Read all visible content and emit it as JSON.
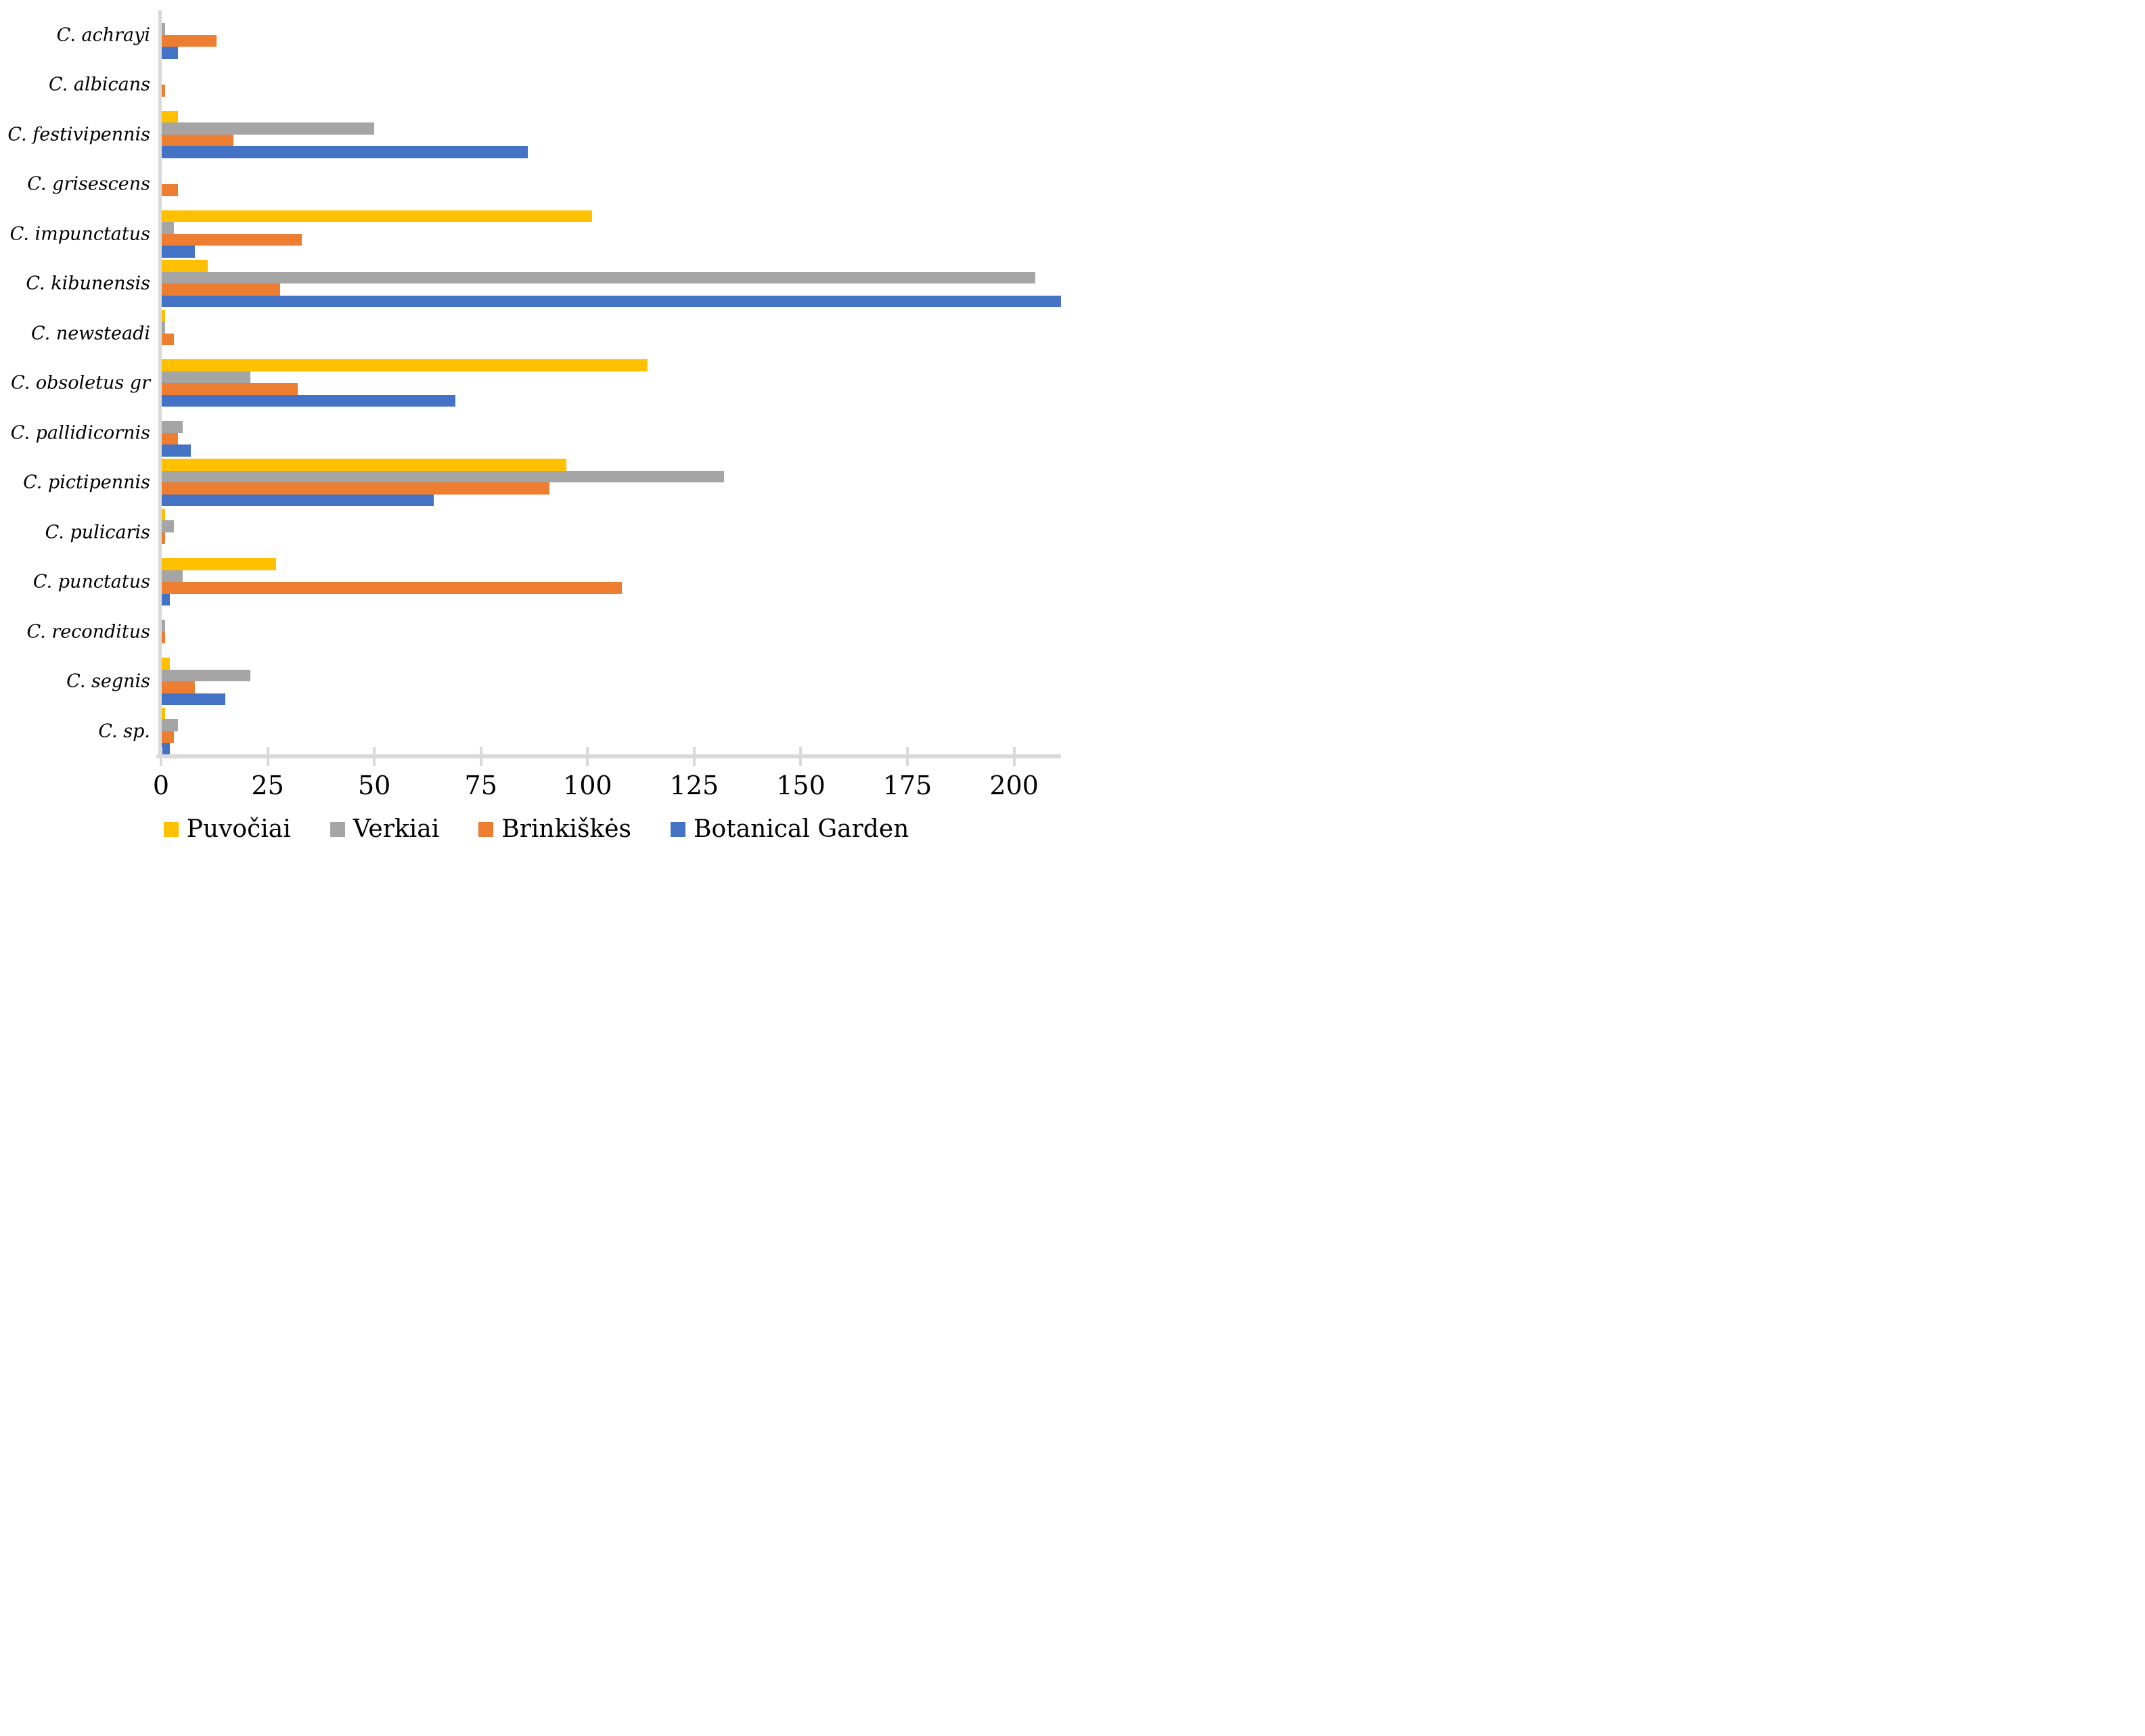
{
  "chart_data": {
    "type": "bar",
    "orientation": "horizontal",
    "title": "",
    "xlabel": "",
    "ylabel": "",
    "grid": false,
    "legend_position": "bottom",
    "axis_color": "#D9D9D9",
    "xlim": [
      0,
      211
    ],
    "x_ticks": [
      0,
      25,
      50,
      75,
      100,
      125,
      150,
      175,
      200
    ],
    "categories": [
      "C. achrayi",
      "C. albicans",
      "C. festivipennis",
      "C. grisescens",
      "C. impunctatus",
      "C. kibunensis",
      "C. newsteadi",
      "C. obsoletus gr",
      "C. pallidicornis",
      "C. pictipennis",
      "C. pulicaris",
      "C. punctatus",
      "C. reconditus",
      "C. segnis",
      "C. sp."
    ],
    "series": [
      {
        "name": "Puvočiai",
        "color": "#FFC000",
        "values": [
          0,
          0,
          4,
          0,
          101,
          11,
          1,
          114,
          0,
          95,
          1,
          27,
          0,
          2,
          1
        ]
      },
      {
        "name": "Verkiai",
        "color": "#A5A5A5",
        "values": [
          1,
          0,
          50,
          0,
          3,
          205,
          1,
          21,
          5,
          132,
          3,
          5,
          1,
          21,
          4
        ]
      },
      {
        "name": "Brinkiškės",
        "color": "#ED7D31",
        "values": [
          13,
          1,
          17,
          4,
          33,
          28,
          3,
          32,
          4,
          91,
          1,
          108,
          1,
          8,
          3
        ]
      },
      {
        "name": "Botanical Garden",
        "color": "#4472C4",
        "values": [
          4,
          0,
          86,
          0,
          8,
          211,
          0,
          69,
          7,
          64,
          0,
          2,
          0,
          15,
          2
        ]
      }
    ]
  }
}
